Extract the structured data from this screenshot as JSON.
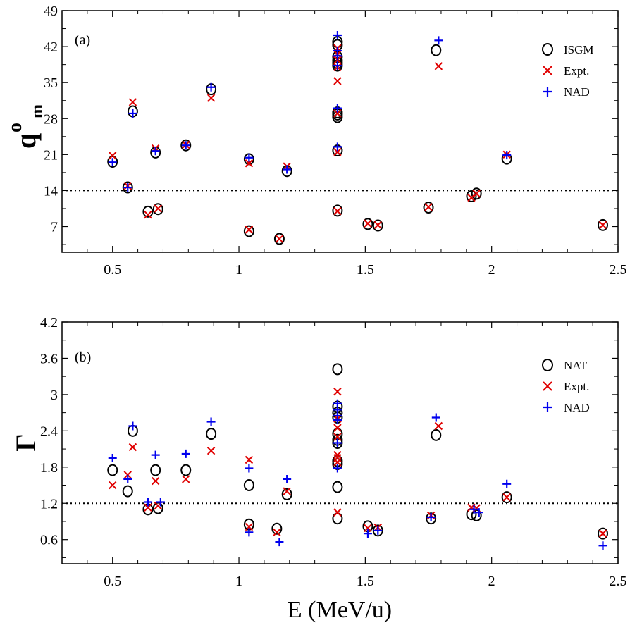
{
  "chart_data": [
    {
      "type": "scatter",
      "panel_label": "(a)",
      "ylabel_main": "q",
      "ylabel_sup": "o",
      "ylabel_sub": "m",
      "xlim": [
        0.3,
        2.5
      ],
      "ylim": [
        2,
        49
      ],
      "xticks": [
        0.5,
        1,
        1.5,
        2,
        2.5
      ],
      "xtick_labels": [
        "0.5",
        "1",
        "1.5",
        "2",
        "2.5"
      ],
      "yticks": [
        7,
        14,
        21,
        28,
        35,
        42,
        49
      ],
      "ytick_labels": [
        "7",
        "14",
        "21",
        "28",
        "35",
        "42",
        "49"
      ],
      "reference_line": 14,
      "legend_position": "top-right",
      "series": [
        {
          "name": "ISGM",
          "marker": "circle",
          "color": "#000000",
          "x": [
            0.5,
            0.56,
            0.58,
            0.64,
            0.67,
            0.68,
            0.79,
            0.89,
            1.04,
            1.04,
            1.16,
            1.19,
            1.39,
            1.39,
            1.39,
            1.39,
            1.39,
            1.39,
            1.39,
            1.39,
            1.39,
            1.39,
            1.39,
            1.51,
            1.55,
            1.75,
            1.78,
            1.92,
            1.94,
            2.06,
            2.44
          ],
          "y": [
            19.6,
            14.6,
            29.4,
            9.9,
            21.4,
            10.4,
            22.8,
            33.7,
            6.1,
            20.1,
            4.6,
            17.8,
            10.1,
            21.8,
            28.3,
            28.8,
            29.2,
            38.3,
            38.8,
            39.3,
            40.0,
            42.3,
            42.9,
            7.5,
            7.2,
            10.7,
            41.3,
            12.9,
            13.4,
            20.2,
            7.3
          ]
        },
        {
          "name": "Expt.",
          "marker": "x",
          "color": "#e00000",
          "x": [
            0.5,
            0.56,
            0.58,
            0.64,
            0.67,
            0.68,
            0.79,
            0.89,
            1.04,
            1.04,
            1.16,
            1.19,
            1.39,
            1.39,
            1.39,
            1.39,
            1.39,
            1.39,
            1.39,
            1.39,
            1.51,
            1.55,
            1.75,
            1.79,
            1.92,
            1.94,
            2.06,
            2.44
          ],
          "y": [
            20.8,
            14.9,
            31.2,
            9.3,
            22.2,
            10.5,
            22.9,
            32.0,
            6.4,
            19.3,
            4.6,
            18.7,
            10.0,
            21.5,
            29.0,
            35.3,
            38.0,
            39.4,
            40.5,
            41.7,
            7.6,
            7.3,
            10.8,
            38.2,
            12.6,
            13.4,
            21.0,
            7.3
          ]
        },
        {
          "name": "NAD",
          "marker": "plus",
          "color": "#0000ee",
          "x": [
            0.5,
            0.56,
            0.58,
            0.67,
            0.79,
            0.89,
            1.04,
            1.19,
            1.39,
            1.39,
            1.39,
            1.39,
            1.39,
            1.39,
            1.79,
            2.06
          ],
          "y": [
            19.5,
            14.6,
            29.0,
            21.7,
            22.8,
            34.1,
            20.4,
            18.1,
            22.5,
            30.0,
            38.3,
            40.2,
            41.2,
            44.2,
            43.2,
            20.9
          ]
        }
      ]
    },
    {
      "type": "scatter",
      "panel_label": "(b)",
      "ylabel": "Γ",
      "xlabel": "E (MeV/u)",
      "xlim": [
        0.3,
        2.5
      ],
      "ylim": [
        0.2,
        4.2
      ],
      "xticks": [
        0.5,
        1,
        1.5,
        2,
        2.5
      ],
      "xtick_labels": [
        "0.5",
        "1",
        "1.5",
        "2",
        "2.5"
      ],
      "yticks": [
        0.6,
        1.2,
        1.8,
        2.4,
        3,
        3.6,
        4.2
      ],
      "ytick_labels": [
        "0.6",
        "1.2",
        "1.8",
        "2.4",
        "3",
        "3.6",
        "4.2"
      ],
      "reference_line": 1.2,
      "legend_position": "top-right",
      "series": [
        {
          "name": "NAT",
          "marker": "circle",
          "color": "#000000",
          "x": [
            0.5,
            0.56,
            0.58,
            0.64,
            0.67,
            0.68,
            0.79,
            0.89,
            1.04,
            1.04,
            1.15,
            1.19,
            1.39,
            1.39,
            1.39,
            1.39,
            1.39,
            1.39,
            1.39,
            1.39,
            1.39,
            1.39,
            1.39,
            1.51,
            1.55,
            1.76,
            1.78,
            1.92,
            1.94,
            2.06,
            2.44
          ],
          "y": [
            1.75,
            1.4,
            2.4,
            1.1,
            1.75,
            1.12,
            1.75,
            2.35,
            0.85,
            1.5,
            0.78,
            1.35,
            0.95,
            1.47,
            1.85,
            1.9,
            2.25,
            2.35,
            2.62,
            2.7,
            2.8,
            3.42,
            2.2,
            0.82,
            0.75,
            0.95,
            2.33,
            1.02,
            1.0,
            1.3,
            0.7
          ]
        },
        {
          "name": "Expt.",
          "marker": "x",
          "color": "#e00000",
          "x": [
            0.5,
            0.56,
            0.58,
            0.64,
            0.67,
            0.68,
            0.79,
            0.89,
            1.04,
            1.04,
            1.15,
            1.19,
            1.39,
            1.39,
            1.39,
            1.39,
            1.39,
            1.39,
            1.39,
            1.39,
            1.51,
            1.55,
            1.76,
            1.79,
            1.92,
            1.94,
            2.06,
            2.44
          ],
          "y": [
            1.5,
            1.67,
            2.13,
            1.13,
            1.57,
            1.16,
            1.6,
            2.07,
            0.81,
            1.92,
            0.72,
            1.4,
            1.05,
            1.88,
            1.95,
            2.0,
            2.3,
            2.45,
            2.6,
            3.05,
            0.79,
            0.8,
            1.0,
            2.48,
            1.13,
            1.12,
            1.3,
            0.7
          ]
        },
        {
          "name": "NAD",
          "marker": "plus",
          "color": "#0000ee",
          "x": [
            0.5,
            0.56,
            0.58,
            0.64,
            0.67,
            0.69,
            0.79,
            0.89,
            1.04,
            1.04,
            1.16,
            1.19,
            1.39,
            1.39,
            1.39,
            1.39,
            1.39,
            1.39,
            1.51,
            1.55,
            1.76,
            1.78,
            1.93,
            1.95,
            2.06,
            2.44
          ],
          "y": [
            1.95,
            1.6,
            2.48,
            1.22,
            2.0,
            1.22,
            2.02,
            2.55,
            0.72,
            1.78,
            0.56,
            1.6,
            1.78,
            2.2,
            2.58,
            2.65,
            2.75,
            2.85,
            0.7,
            0.75,
            0.97,
            2.62,
            1.1,
            1.05,
            1.52,
            0.5
          ]
        }
      ]
    }
  ]
}
